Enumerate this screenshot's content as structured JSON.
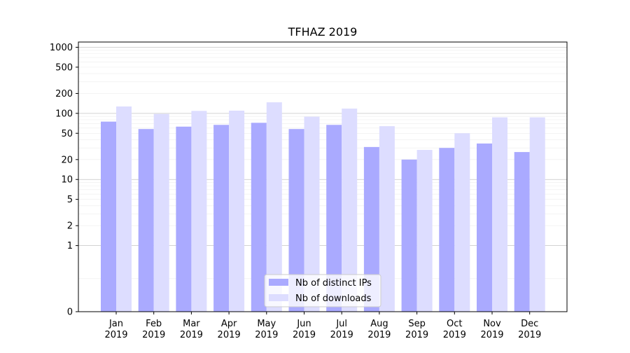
{
  "chart_data": {
    "type": "bar",
    "title": "TFHAZ 2019",
    "xlabel": "",
    "ylabel": "",
    "y_scale": "symlog",
    "ylim": [
      0,
      1200
    ],
    "y_ticks": [
      0,
      1,
      2,
      5,
      10,
      20,
      50,
      100,
      200,
      500,
      1000
    ],
    "y_tick_labels": [
      "0",
      "1",
      "2",
      "5",
      "10",
      "20",
      "50",
      "100",
      "200",
      "500",
      "1000"
    ],
    "grid": true,
    "legend_position": "bottom-center",
    "categories": [
      "Jan\n2019",
      "Feb\n2019",
      "Mar\n2019",
      "Apr\n2019",
      "May\n2019",
      "Jun\n2019",
      "Jul\n2019",
      "Aug\n2019",
      "Sep\n2019",
      "Oct\n2019",
      "Nov\n2019",
      "Dec\n2019"
    ],
    "series": [
      {
        "name": "Nb of distinct IPs",
        "color": "#aaaaff",
        "values": [
          75,
          58,
          63,
          67,
          72,
          58,
          67,
          31,
          20,
          30,
          35,
          26
        ]
      },
      {
        "name": "Nb of downloads",
        "color": "#ddddff",
        "values": [
          127,
          98,
          109,
          110,
          147,
          89,
          118,
          64,
          28,
          50,
          87,
          87
        ]
      }
    ]
  }
}
